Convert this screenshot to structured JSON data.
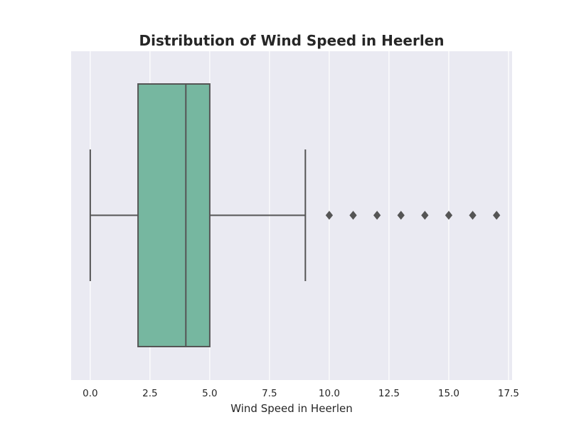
{
  "chart_data": {
    "type": "box",
    "title": "Distribution of Wind Speed in Heerlen",
    "xlabel": "Wind Speed in Heerlen",
    "ylabel": "",
    "orientation": "horizontal",
    "xlim": [
      -0.8,
      17.65
    ],
    "x_ticks": [
      0.0,
      2.5,
      5.0,
      7.5,
      10.0,
      12.5,
      15.0,
      17.5
    ],
    "x_tick_labels": [
      "0.0",
      "2.5",
      "5.0",
      "7.5",
      "10.0",
      "12.5",
      "15.0",
      "17.5"
    ],
    "grid": true,
    "box": {
      "whisker_low": 0,
      "q1": 2,
      "median": 4,
      "q3": 5,
      "whisker_high": 9,
      "outliers": [
        10,
        11,
        12,
        13,
        14,
        15,
        16,
        17
      ]
    },
    "colors": {
      "box_fill": "#76b7a0",
      "line": "#555555",
      "plot_background": "#eaeaf2",
      "grid": "#ffffff",
      "text": "#262626"
    }
  }
}
